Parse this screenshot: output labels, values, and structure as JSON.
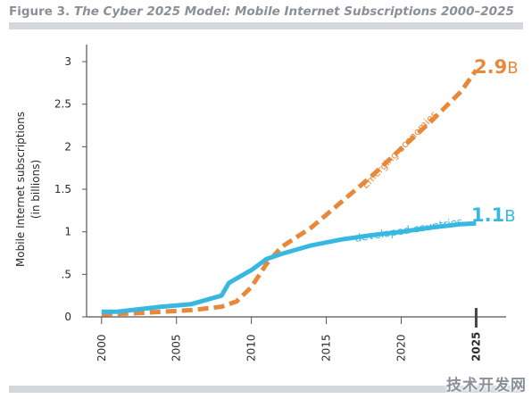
{
  "figure": {
    "label": "Figure 3.",
    "title": "The Cyber 2025 Model: Mobile Internet Subscriptions 2000–2025"
  },
  "chart_data": {
    "type": "line",
    "title": "The Cyber 2025 Model: Mobile Internet Subscriptions 2000–2025",
    "ylabel_line1": "Mobile Internet subscriptions",
    "ylabel_line2": "(in billions)",
    "xlabel": "",
    "ylim": [
      0,
      3.2
    ],
    "xlim": [
      1999,
      2027
    ],
    "y_ticks": [
      {
        "value": 0,
        "label": "0"
      },
      {
        "value": 0.5,
        "label": ".5"
      },
      {
        "value": 1,
        "label": "1"
      },
      {
        "value": 1.5,
        "label": "1.5"
      },
      {
        "value": 2,
        "label": "2"
      },
      {
        "value": 2.5,
        "label": "2.5"
      },
      {
        "value": 3,
        "label": "3"
      }
    ],
    "x_ticks": [
      {
        "value": 2000,
        "label": "2000",
        "bold": false
      },
      {
        "value": 2005,
        "label": "2005",
        "bold": false
      },
      {
        "value": 2010,
        "label": "2010",
        "bold": false
      },
      {
        "value": 2015,
        "label": "2015",
        "bold": false
      },
      {
        "value": 2020,
        "label": "2020",
        "bold": false
      },
      {
        "value": 2025,
        "label": "2025",
        "bold": true
      }
    ],
    "grid": false,
    "series": [
      {
        "name": "Emerging economies",
        "color": "#e8883a",
        "style": "dashed",
        "x": [
          2000,
          2002,
          2004,
          2006,
          2008,
          2009,
          2010,
          2011,
          2012,
          2014,
          2016,
          2018,
          2020,
          2022,
          2024,
          2025
        ],
        "y": [
          0.03,
          0.04,
          0.06,
          0.08,
          0.12,
          0.18,
          0.35,
          0.62,
          0.82,
          1.05,
          1.35,
          1.65,
          1.98,
          2.3,
          2.65,
          2.9
        ],
        "end_label": {
          "value": "2.9",
          "unit": "B"
        }
      },
      {
        "name": "developed countries",
        "color": "#36b8e0",
        "style": "solid",
        "x": [
          2000,
          2001,
          2002,
          2004,
          2006,
          2008,
          2008.5,
          2009,
          2010,
          2011,
          2012,
          2014,
          2016,
          2018,
          2020,
          2022,
          2024,
          2025
        ],
        "y": [
          0.06,
          0.06,
          0.08,
          0.12,
          0.15,
          0.25,
          0.4,
          0.45,
          0.55,
          0.68,
          0.74,
          0.84,
          0.91,
          0.96,
          1.0,
          1.05,
          1.09,
          1.1
        ],
        "end_label": {
          "value": "1.1",
          "unit": "B"
        }
      }
    ]
  },
  "watermark": "技术开发网"
}
